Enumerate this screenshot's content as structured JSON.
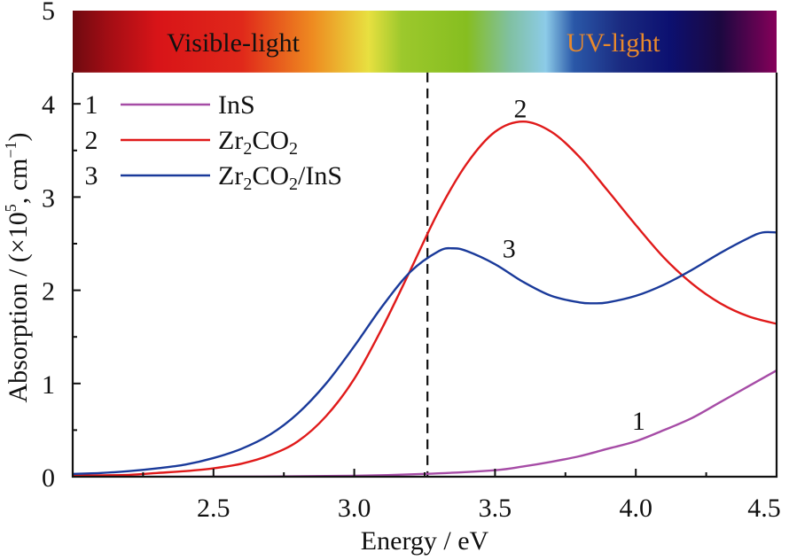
{
  "chart_data": {
    "type": "line",
    "title": "",
    "xlabel": "Energy / eV",
    "ylabel_parts": {
      "prefix": "Absorption / (×10",
      "sup1": "5",
      "mid": ", cm",
      "sup2": "−1",
      "suffix": ")"
    },
    "ylabel": "Absorption / (×10^5, cm^-1)",
    "xlim": [
      2.0,
      4.5
    ],
    "ylim": [
      0,
      5
    ],
    "grid": false,
    "x_ticks": [
      2.5,
      3.0,
      3.5,
      4.0,
      4.5
    ],
    "x_tick_labels": [
      "2.5",
      "3.0",
      "3.5",
      "4.0",
      "4.5"
    ],
    "x_minor_ticks": [
      2.25,
      2.75,
      3.25,
      3.75,
      4.25
    ],
    "y_ticks": [
      0,
      1,
      2,
      3,
      4,
      5
    ],
    "y_tick_labels": [
      "0",
      "1",
      "2",
      "3",
      "4",
      "5"
    ],
    "y_minor_ticks": [
      0.5,
      1.5,
      2.5,
      3.5
    ],
    "legend_position": "top-left",
    "spectrum_band": {
      "y_range": [
        4.45,
        5.0
      ],
      "labels": [
        {
          "text": "Visible-light",
          "x": 2.57,
          "color": "#111111"
        },
        {
          "text": "UV-light",
          "x": 3.92,
          "color": "#e8892c"
        }
      ],
      "gradient": [
        {
          "x": 2.0,
          "color": "#6e0a10"
        },
        {
          "x": 2.12,
          "color": "#a00d14"
        },
        {
          "x": 2.3,
          "color": "#d81418"
        },
        {
          "x": 2.6,
          "color": "#e0281a"
        },
        {
          "x": 2.85,
          "color": "#ee8a20"
        },
        {
          "x": 3.05,
          "color": "#e8e040"
        },
        {
          "x": 3.17,
          "color": "#9cc82c"
        },
        {
          "x": 3.4,
          "color": "#86be20"
        },
        {
          "x": 3.55,
          "color": "#80c0a0"
        },
        {
          "x": 3.68,
          "color": "#8ccbe8"
        },
        {
          "x": 3.78,
          "color": "#2a58a8"
        },
        {
          "x": 3.95,
          "color": "#1a2a80"
        },
        {
          "x": 4.12,
          "color": "#0c1070"
        },
        {
          "x": 4.3,
          "color": "#1c0840"
        },
        {
          "x": 4.5,
          "color": "#86005a"
        }
      ]
    },
    "reference_line": {
      "x": 3.26,
      "style": "dashed",
      "color": "#111111"
    },
    "series": [
      {
        "id": "1",
        "name": "InS",
        "name_parts": [
          "InS"
        ],
        "color": "#a64ca6",
        "curve_label": {
          "text": "1",
          "x": 4.01,
          "y": 0.6
        },
        "x": [
          2.0,
          2.5,
          3.0,
          3.25,
          3.5,
          3.6,
          3.7,
          3.8,
          3.9,
          4.0,
          4.1,
          4.2,
          4.3,
          4.4,
          4.5
        ],
        "y": [
          0.0,
          0.0,
          0.01,
          0.03,
          0.07,
          0.11,
          0.16,
          0.22,
          0.3,
          0.38,
          0.5,
          0.63,
          0.8,
          0.97,
          1.14
        ]
      },
      {
        "id": "2",
        "name": "Zr2CO2",
        "name_parts": [
          "Zr",
          "2",
          "CO",
          "2"
        ],
        "color": "#e01a1a",
        "curve_label": {
          "text": "2",
          "x": 3.59,
          "y": 3.95
        },
        "x": [
          2.0,
          2.1,
          2.2,
          2.3,
          2.4,
          2.5,
          2.6,
          2.7,
          2.8,
          2.9,
          3.0,
          3.1,
          3.2,
          3.3,
          3.4,
          3.5,
          3.6,
          3.7,
          3.8,
          3.9,
          4.0,
          4.1,
          4.2,
          4.3,
          4.4,
          4.5
        ],
        "y": [
          0.01,
          0.015,
          0.02,
          0.04,
          0.06,
          0.09,
          0.14,
          0.23,
          0.38,
          0.65,
          1.05,
          1.6,
          2.22,
          2.85,
          3.36,
          3.7,
          3.81,
          3.7,
          3.43,
          3.07,
          2.7,
          2.35,
          2.07,
          1.86,
          1.72,
          1.64
        ]
      },
      {
        "id": "3",
        "name": "Zr2CO2/InS",
        "name_parts": [
          "Zr",
          "2",
          "CO",
          "2",
          "/InS"
        ],
        "color": "#1a3a9a",
        "curve_label": {
          "text": "3",
          "x": 3.55,
          "y": 2.45
        },
        "x": [
          2.0,
          2.1,
          2.2,
          2.3,
          2.4,
          2.5,
          2.6,
          2.7,
          2.8,
          2.9,
          3.0,
          3.1,
          3.2,
          3.3,
          3.35,
          3.4,
          3.5,
          3.6,
          3.7,
          3.8,
          3.85,
          3.9,
          4.0,
          4.1,
          4.2,
          4.3,
          4.4,
          4.45,
          4.5
        ],
        "y": [
          0.03,
          0.04,
          0.06,
          0.09,
          0.13,
          0.2,
          0.3,
          0.45,
          0.68,
          1.0,
          1.4,
          1.83,
          2.2,
          2.42,
          2.45,
          2.42,
          2.28,
          2.09,
          1.94,
          1.87,
          1.86,
          1.87,
          1.94,
          2.06,
          2.22,
          2.4,
          2.56,
          2.62,
          2.62
        ]
      }
    ]
  }
}
